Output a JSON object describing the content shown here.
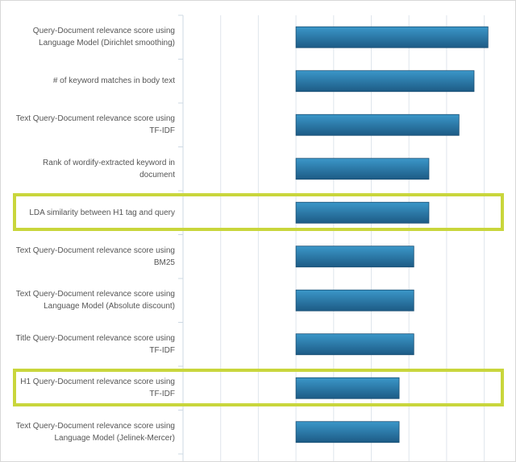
{
  "chart_data": {
    "type": "bar",
    "orientation": "horizontal",
    "title": "",
    "xlabel": "",
    "ylabel": "",
    "grid": true,
    "bar_base": 3,
    "xlim": [
      0,
      8.3
    ],
    "categories": [
      "Query-Document relevance score using Language Model (Dirichlet smoothing)",
      "# of keyword matches in body text",
      "Text Query-Document relevance score using TF-IDF",
      "Rank of wordify-extracted keyword in document",
      "LDA similarity between H1 tag and query",
      "Text Query-Document relevance score using BM25",
      "Text Query-Document relevance score using Language Model (Absolute discount)",
      "Title Query-Document relevance score using TF-IDF",
      "H1 Query-Document relevance score using TF-IDF",
      "Text Query-Document relevance score using Language Model (Jelinek-Mercer)"
    ],
    "values": [
      8.1,
      7.73,
      7.33,
      6.53,
      6.53,
      6.13,
      6.13,
      6.13,
      5.74,
      5.74
    ],
    "highlighted": [
      4,
      8
    ],
    "colors": {
      "bar": "#2a77a8",
      "bar_light": "#3b97c9",
      "bar_dark": "#1d5b85",
      "highlight": "#c9d63c",
      "grid": "#dfe5ec"
    }
  }
}
